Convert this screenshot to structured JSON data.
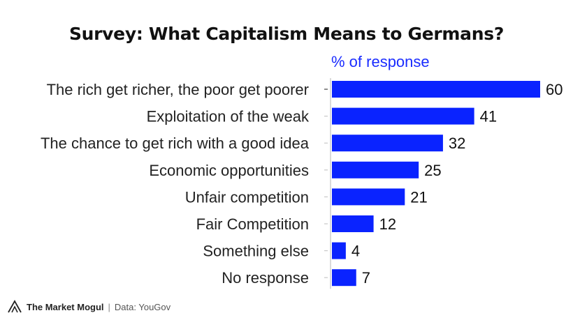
{
  "header": {
    "title": "Survey: What Capitalism Means to Germans?",
    "subtitle": "% of response"
  },
  "footer": {
    "brand": "The Market Mogul",
    "separator": "|",
    "source": "Data: YouGov"
  },
  "colors": {
    "bar": "#0a23ff",
    "subtitle": "#1a2cff"
  },
  "chart_data": {
    "type": "bar",
    "orientation": "horizontal",
    "categories": [
      "The rich get richer, the poor get poorer",
      "Exploitation of the weak",
      "The chance to get rich with a good idea",
      "Economic opportunities",
      "Unfair competition",
      "Fair Competition",
      "Something else",
      "No response"
    ],
    "values": [
      60,
      41,
      32,
      25,
      21,
      12,
      4,
      7
    ],
    "title": "Survey: What Capitalism Means to Germans?",
    "subtitle": "% of response",
    "xlim": [
      0,
      60
    ],
    "grid": false,
    "legend": "none"
  }
}
